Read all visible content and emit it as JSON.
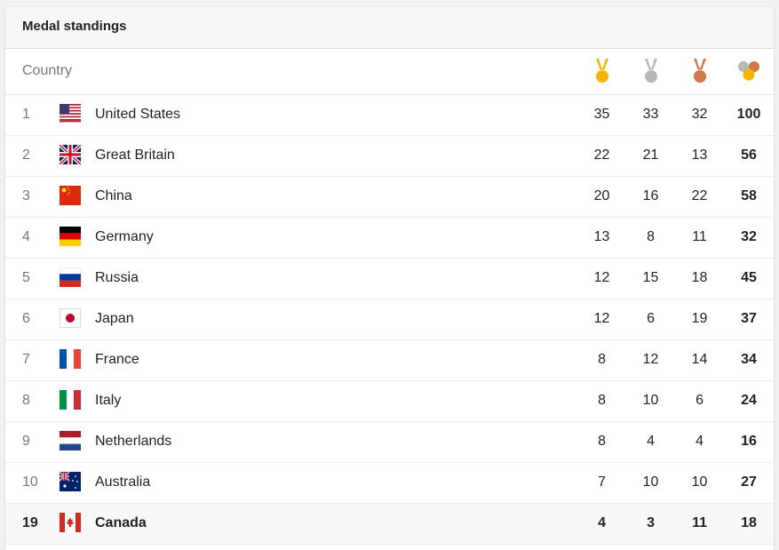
{
  "header": {
    "title": "Medal standings"
  },
  "columns": {
    "country": "Country",
    "gold_icon": "gold-medal-icon",
    "silver_icon": "silver-medal-icon",
    "bronze_icon": "bronze-medal-icon",
    "total_icon": "total-medals-icon"
  },
  "colors": {
    "gold": "#f5b400",
    "silver": "#b8b8b8",
    "bronze": "#d2774a"
  },
  "rows": [
    {
      "rank": "1",
      "country": "United States",
      "flag": "us-flag-icon",
      "gold": "35",
      "silver": "33",
      "bronze": "32",
      "total": "100"
    },
    {
      "rank": "2",
      "country": "Great Britain",
      "flag": "gb-flag-icon",
      "gold": "22",
      "silver": "21",
      "bronze": "13",
      "total": "56"
    },
    {
      "rank": "3",
      "country": "China",
      "flag": "cn-flag-icon",
      "gold": "20",
      "silver": "16",
      "bronze": "22",
      "total": "58"
    },
    {
      "rank": "4",
      "country": "Germany",
      "flag": "de-flag-icon",
      "gold": "13",
      "silver": "8",
      "bronze": "11",
      "total": "32"
    },
    {
      "rank": "5",
      "country": "Russia",
      "flag": "ru-flag-icon",
      "gold": "12",
      "silver": "15",
      "bronze": "18",
      "total": "45"
    },
    {
      "rank": "6",
      "country": "Japan",
      "flag": "jp-flag-icon",
      "gold": "12",
      "silver": "6",
      "bronze": "19",
      "total": "37"
    },
    {
      "rank": "7",
      "country": "France",
      "flag": "fr-flag-icon",
      "gold": "8",
      "silver": "12",
      "bronze": "14",
      "total": "34"
    },
    {
      "rank": "8",
      "country": "Italy",
      "flag": "it-flag-icon",
      "gold": "8",
      "silver": "10",
      "bronze": "6",
      "total": "24"
    },
    {
      "rank": "9",
      "country": "Netherlands",
      "flag": "nl-flag-icon",
      "gold": "8",
      "silver": "4",
      "bronze": "4",
      "total": "16"
    },
    {
      "rank": "10",
      "country": "Australia",
      "flag": "au-flag-icon",
      "gold": "7",
      "silver": "10",
      "bronze": "10",
      "total": "27"
    },
    {
      "rank": "19",
      "country": "Canada",
      "flag": "ca-flag-icon",
      "gold": "4",
      "silver": "3",
      "bronze": "11",
      "total": "18",
      "highlight": true
    }
  ]
}
